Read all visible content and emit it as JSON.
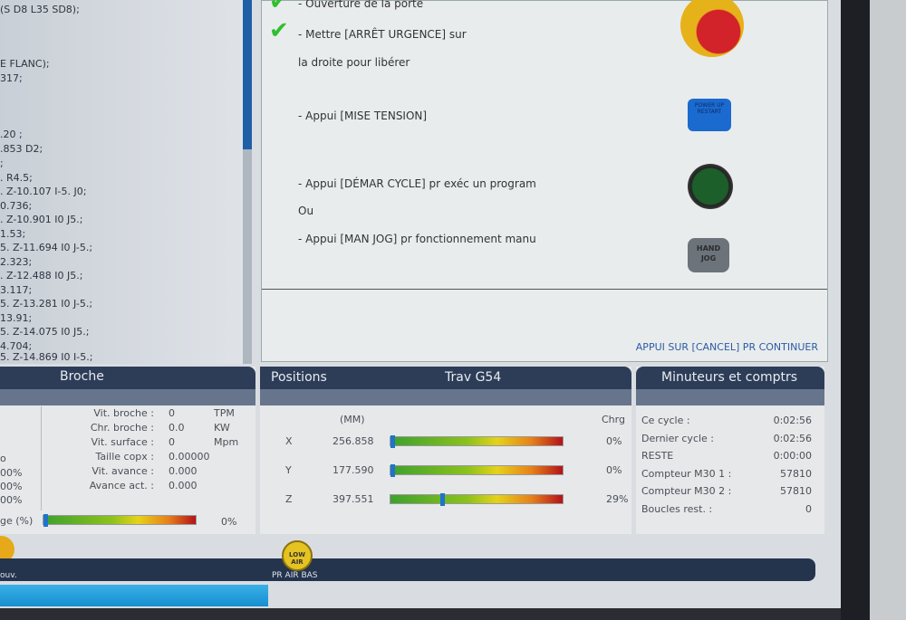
{
  "program_code": [
    "(S D8 L35 SD8);",
    "E FLANC);",
    "317;",
    ".20 ;",
    ".853 D2;",
    ";",
    ". R4.5;",
    ". Z-10.107 I-5. J0;",
    "0.736;",
    ". Z-10.901 I0 J5.;",
    "1.53;",
    "5. Z-11.694 I0 J-5.;",
    "2.323;",
    ". Z-12.488 I0 J5.;",
    "3.117;",
    "5. Z-13.281 I0 J-5.;",
    "13.91;",
    "5. Z-14.075 I0 J5.;",
    "4.704;",
    "5. Z-14.869 I0 I-5.;"
  ],
  "dialog": {
    "lines": [
      "- Ouverture de la porte",
      "- Mettre [ARRÊT URGENCE] sur",
      "la droite pour libérer",
      "- Appui [MISE TENSION]",
      "- Appui [DÉMAR CYCLE] pr exéc un program",
      "Ou",
      "- Appui [MAN JOG] pr fonctionnement manu"
    ],
    "continue": "APPUI SUR [CANCEL] PR CONTINUER",
    "power_button": "POWER UP RESTART",
    "jog_button": [
      "HAND",
      "JOG"
    ],
    "check_color": "#2fc02f"
  },
  "broche": {
    "title": "Broche",
    "left_partial": [
      "o",
      "00%",
      "00%",
      "00%"
    ],
    "rows": [
      {
        "label": "Vit. broche :",
        "value": "0",
        "unit": "TPM"
      },
      {
        "label": "Chr. broche :",
        "value": "0.0",
        "unit": "KW"
      },
      {
        "label": "Vit. surface :",
        "value": "0",
        "unit": "Mpm"
      },
      {
        "label": "Taille copx :",
        "value": "0.00000",
        "unit": ""
      },
      {
        "label": "Vit. avance :",
        "value": "0.000",
        "unit": ""
      },
      {
        "label": "Avance act. :",
        "value": "0.000",
        "unit": ""
      }
    ],
    "load_label": "ge (%)",
    "load_value": "0%",
    "load_fraction": 0
  },
  "positions": {
    "title": "Positions",
    "mode": "Trav G54",
    "unit_header": "(MM)",
    "load_header": "Chrg",
    "axes": [
      {
        "axis": "X",
        "value": "256.858",
        "load": "0%",
        "load_fraction": 0
      },
      {
        "axis": "Y",
        "value": "177.590",
        "load": "0%",
        "load_fraction": 0
      },
      {
        "axis": "Z",
        "value": "397.551",
        "load": "29%",
        "load_fraction": 0.29
      }
    ]
  },
  "timers": {
    "title": "Minuteurs et comptrs",
    "rows": [
      {
        "label": "Ce cycle :",
        "value": "0:02:56"
      },
      {
        "label": "Dernier cycle :",
        "value": "0:02:56"
      },
      {
        "label": "RESTE",
        "value": "0:00:00"
      },
      {
        "label": "Compteur M30 1 :",
        "value": "57810"
      },
      {
        "label": "Compteur M30 2 :",
        "value": "57810"
      },
      {
        "label": "Boucles rest. :",
        "value": "0"
      }
    ]
  },
  "footer": {
    "left_label": "ouv.",
    "air_button": "LOW AIR",
    "air_label": "PR AIR BAS"
  }
}
